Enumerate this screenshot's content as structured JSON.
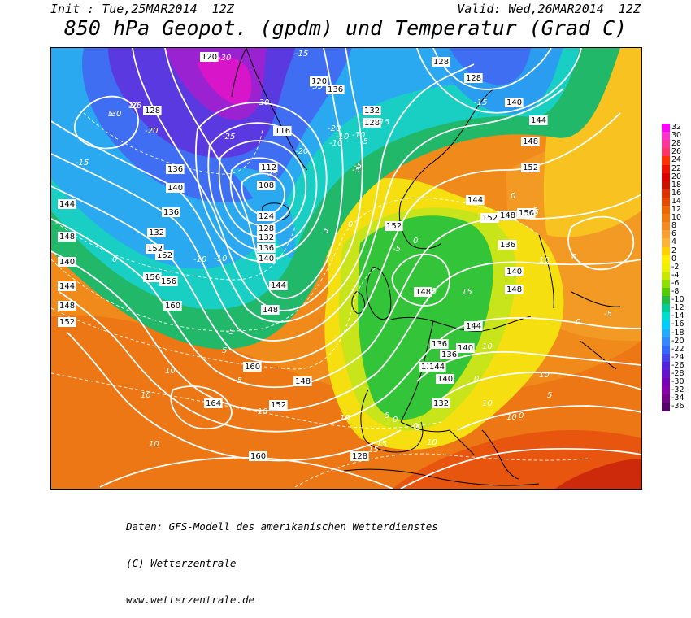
{
  "header": {
    "init": "Init : Tue,25MAR2014  12Z",
    "valid": "Valid: Wed,26MAR2014  12Z",
    "title": "850 hPa Geopot. (gpdm) und Temperatur (Grad C)"
  },
  "credits": [
    "Daten: GFS-Modell des amerikanischen Wetterdienstes",
    "(C) Wetterzentrale",
    "www.wetterzentrale.de"
  ],
  "legend": {
    "labels": [
      "32",
      "30",
      "28",
      "26",
      "24",
      "22",
      "20",
      "18",
      "16",
      "14",
      "12",
      "10",
      "8",
      "6",
      "4",
      "2",
      "0",
      "-2",
      "-4",
      "-6",
      "-8",
      "-10",
      "-12",
      "-14",
      "-16",
      "-18",
      "-20",
      "-22",
      "-24",
      "-26",
      "-28",
      "-30",
      "-32",
      "-34",
      "-36"
    ],
    "colors": [
      "#ff00ff",
      "#ff33cc",
      "#ff3399",
      "#ff3366",
      "#ff3300",
      "#ee1100",
      "#dd0000",
      "#cc1100",
      "#dd3300",
      "#e44a00",
      "#ee6600",
      "#f07a10",
      "#f58a20",
      "#f9a030",
      "#fbb435",
      "#fdd000",
      "#ffee00",
      "#eef000",
      "#c8e800",
      "#90dd00",
      "#55cc00",
      "#22bb44",
      "#00cc99",
      "#00ddcc",
      "#00ccff",
      "#22aaff",
      "#3388ff",
      "#3366ff",
      "#4444ee",
      "#5522dd",
      "#6611cc",
      "#7700bb",
      "#8800aa",
      "#770088",
      "#550066"
    ]
  },
  "map_labels": {
    "geopotential": [
      "120",
      "120",
      "128",
      "136",
      "132",
      "128",
      "116",
      "112",
      "108",
      "124",
      "128",
      "132",
      "136",
      "140",
      "144",
      "148",
      "152",
      "156",
      "160",
      "164",
      "128",
      "136",
      "140",
      "144",
      "148",
      "152",
      "132",
      "136",
      "140",
      "144",
      "148",
      "152",
      "156",
      "160",
      "128",
      "140",
      "144",
      "148",
      "152",
      "156",
      "132",
      "136",
      "140",
      "144",
      "148",
      "152",
      "152",
      "148",
      "144",
      "136",
      "140",
      "148",
      "148",
      "152",
      "160",
      "136",
      "144",
      "140",
      "132",
      "128"
    ],
    "temperature": [
      "-30",
      "-25",
      "-20",
      "-15",
      "-10",
      "-5",
      "0",
      "5",
      "10",
      "15",
      "-15",
      "-20",
      "-25",
      "-30",
      "-35",
      "-10",
      "-5",
      "-15",
      "-20",
      "-25",
      "-30",
      "-10",
      "-5",
      "0",
      "5",
      "10",
      "15",
      "-15",
      "-10",
      "-5",
      "0",
      "5",
      "10",
      "-10",
      "-5",
      "0",
      "5",
      "10",
      "-5",
      "0",
      "5",
      "10",
      "10",
      "10",
      "10",
      "10",
      "15",
      "15",
      "-10",
      "-5",
      "0",
      "5",
      "0",
      "0",
      "5",
      "10",
      "15",
      "0",
      "-5",
      "0",
      "5",
      "10"
    ]
  },
  "colors": {
    "contour": "#ffffff",
    "coast": "#000000",
    "background": "#ffffff"
  }
}
